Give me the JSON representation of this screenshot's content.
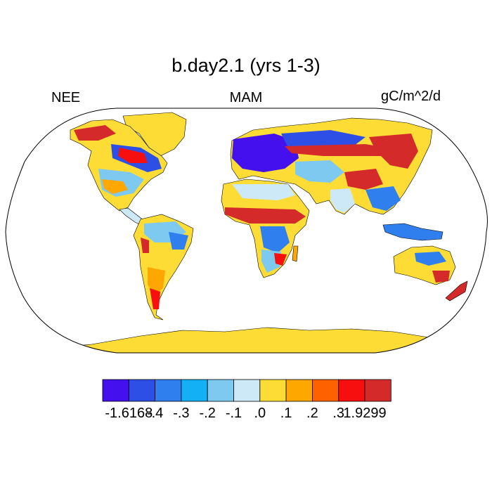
{
  "title": "b.day2.1 (yrs 1-3)",
  "variable": "NEE",
  "season": "MAM",
  "units": "gC/m^2/d",
  "colorbar": {
    "colors": [
      "#4411ee",
      "#2d4fe6",
      "#2f7fef",
      "#13b0f5",
      "#7ec9f0",
      "#cde9f7",
      "#fddd35",
      "#fea701",
      "#fe6200",
      "#f70f0f",
      "#d52a2a"
    ],
    "labels": [
      "-1.6168",
      "-.4",
      "-.3",
      "-.2",
      "-.1",
      ".0",
      ".1",
      ".2",
      ".3",
      "1.9299"
    ]
  },
  "map_background": "#ffffff",
  "coastline_color": "#000000"
}
